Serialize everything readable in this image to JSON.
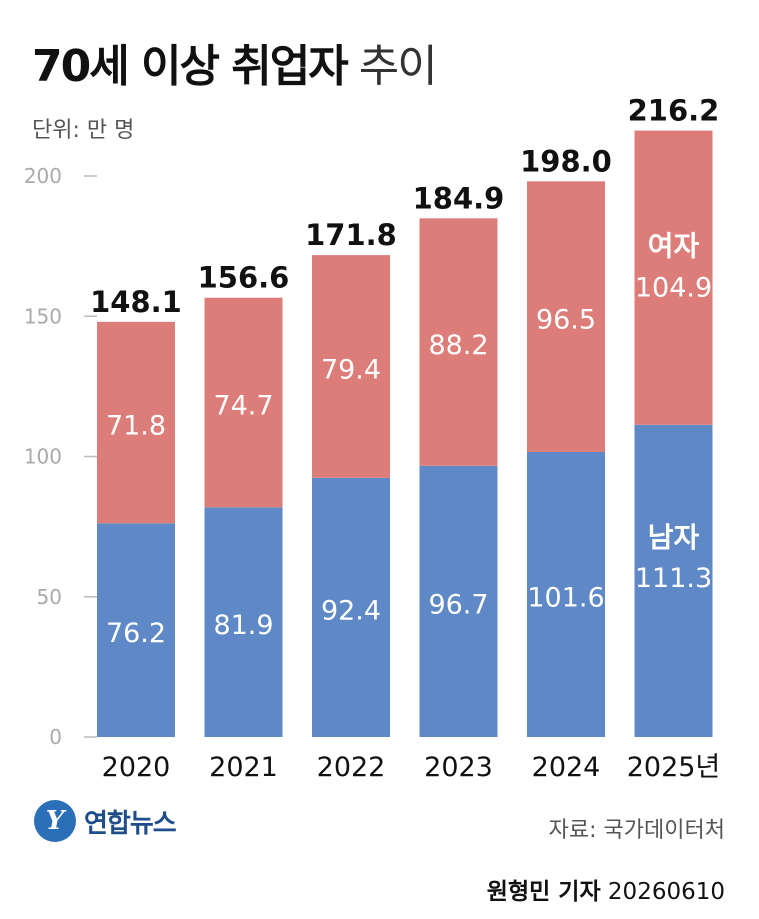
{
  "title_bold": "70세 이상 취업자",
  "title_light": "추이",
  "unit": "단위: 만 명",
  "chart_data": {
    "type": "bar",
    "stacked": true,
    "categories": [
      "2020",
      "2021",
      "2022",
      "2023",
      "2024",
      "2025년"
    ],
    "series": [
      {
        "name": "남자",
        "values": [
          76.2,
          81.9,
          92.4,
          96.7,
          101.6,
          111.3
        ],
        "color": "#5e88c6"
      },
      {
        "name": "여자",
        "values": [
          71.8,
          74.7,
          79.4,
          88.2,
          96.5,
          104.9
        ],
        "color": "#dd7d7a"
      }
    ],
    "totals": [
      "148.1",
      "156.6",
      "171.8",
      "184.9",
      "198.0",
      "216.2"
    ],
    "value_labels": [
      [
        "76.2",
        "81.9",
        "92.4",
        "96.7",
        "101.6",
        "111.3"
      ],
      [
        "71.8",
        "74.7",
        "79.4",
        "88.2",
        "96.5",
        "104.9"
      ]
    ],
    "y_ticks": [
      "0",
      "50",
      "100",
      "150",
      "200"
    ],
    "ylim": [
      0,
      200
    ],
    "grid": false
  },
  "source": "자료: 국가데이터처",
  "logo_text": "연합뉴스",
  "credit_name": "원형민 기자",
  "credit_date": "20260610"
}
